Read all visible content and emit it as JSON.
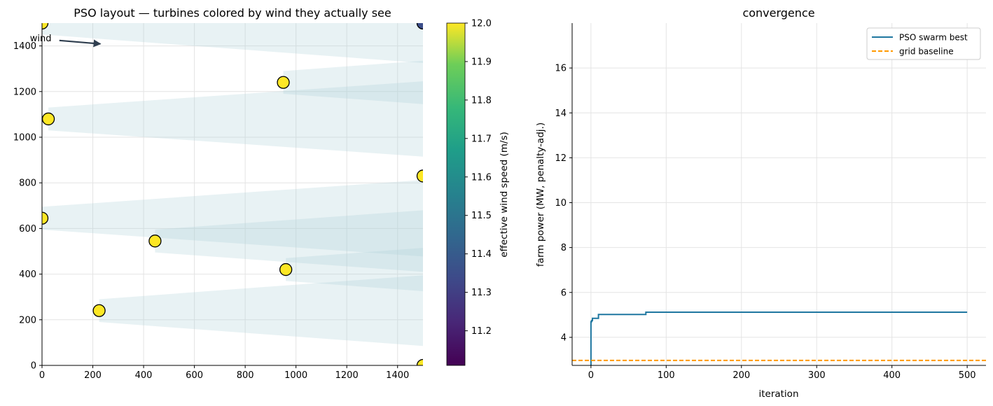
{
  "chart_data": [
    {
      "type": "scatter",
      "title": "PSO layout — turbines colored by wind they actually see",
      "xlabel": "",
      "ylabel": "",
      "xlim": [
        0,
        1500
      ],
      "ylim": [
        0,
        1500
      ],
      "xticks": [
        0,
        200,
        400,
        600,
        800,
        1000,
        1200,
        1400
      ],
      "yticks": [
        0,
        200,
        400,
        600,
        800,
        1000,
        1200,
        1400
      ],
      "grid": true,
      "annotation": {
        "text": "wind",
        "arrow_from": [
          140,
          1430
        ],
        "arrow_to": [
          230,
          1415
        ]
      },
      "colorbar": {
        "label": "effective wind speed (m/s)",
        "range": [
          11.11,
          12.0
        ],
        "ticks": [
          "11.2",
          "11.3",
          "11.4",
          "11.5",
          "11.6",
          "11.7",
          "11.8",
          "11.9",
          "12.0"
        ],
        "colormap": "viridis"
      },
      "turbines": [
        {
          "x": 0,
          "y": 1500,
          "ws": 12.0
        },
        {
          "x": 1500,
          "y": 1500,
          "ws": 11.35
        },
        {
          "x": 950,
          "y": 1240,
          "ws": 12.0
        },
        {
          "x": 25,
          "y": 1080,
          "ws": 12.0
        },
        {
          "x": 1500,
          "y": 830,
          "ws": 12.0
        },
        {
          "x": 0,
          "y": 645,
          "ws": 12.0
        },
        {
          "x": 445,
          "y": 545,
          "ws": 12.0
        },
        {
          "x": 960,
          "y": 420,
          "ws": 12.0
        },
        {
          "x": 225,
          "y": 240,
          "ws": 12.0
        },
        {
          "x": 1500,
          "y": 0,
          "ws": 12.0
        }
      ],
      "wakes": [
        {
          "x0": 0,
          "y0": 1500,
          "x1": 1500,
          "y1": 1500,
          "w0": 100,
          "w1": 350
        },
        {
          "x0": 950,
          "y0": 1240,
          "x1": 1500,
          "y1": 1240,
          "w0": 100,
          "w1": 190
        },
        {
          "x0": 25,
          "y0": 1080,
          "x1": 1500,
          "y1": 1080,
          "w0": 100,
          "w1": 330
        },
        {
          "x0": 0,
          "y0": 645,
          "x1": 1500,
          "y1": 645,
          "w0": 100,
          "w1": 335
        },
        {
          "x0": 445,
          "y0": 545,
          "x1": 1500,
          "y1": 545,
          "w0": 100,
          "w1": 270
        },
        {
          "x0": 960,
          "y0": 420,
          "x1": 1500,
          "y1": 420,
          "w0": 100,
          "w1": 190
        },
        {
          "x0": 225,
          "y0": 240,
          "x1": 1500,
          "y1": 240,
          "w0": 100,
          "w1": 310
        }
      ],
      "colors": {
        "wake": "#aecfd8",
        "grid": "#e4e4e4",
        "marker_edge": "#000000"
      }
    },
    {
      "type": "line",
      "title": "convergence",
      "xlabel": "iteration",
      "ylabel": "farm power (MW, penalty-adj.)",
      "xlim": [
        -25,
        525
      ],
      "ylim": [
        2.75,
        18.0
      ],
      "xticks": [
        0,
        100,
        200,
        300,
        400,
        500
      ],
      "yticks": [
        4,
        6,
        8,
        10,
        12,
        14,
        16
      ],
      "grid": true,
      "legend_position": "top-right",
      "series": [
        {
          "name": "PSO swarm best",
          "color": "#1f77a0",
          "style": "solid",
          "x": [
            0,
            0,
            1,
            1,
            2,
            2,
            5,
            5,
            10,
            10,
            73,
            73,
            500
          ],
          "y": [
            2.75,
            4.7,
            4.7,
            4.75,
            4.75,
            4.85,
            4.85,
            4.85,
            4.85,
            5.02,
            5.02,
            5.12,
            5.12
          ]
        },
        {
          "name": "grid baseline",
          "color": "#ff9900",
          "style": "dashed",
          "x": [
            -25,
            525
          ],
          "y": [
            2.97,
            2.97
          ]
        }
      ]
    }
  ]
}
